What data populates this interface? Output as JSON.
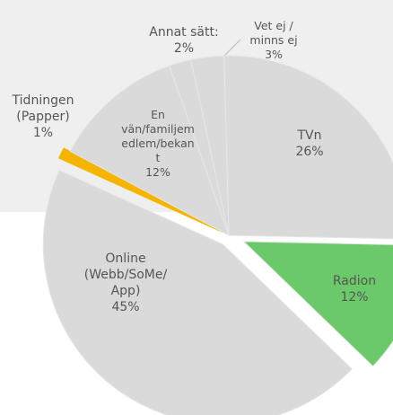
{
  "chart_data": {
    "type": "pie",
    "categories": [
      "TVn",
      "Radion",
      "Online (Webb/SoMe/App)",
      "Tidningen (Papper)",
      "En vän/familjemedlem/bekant",
      "Annat sätt:",
      "Vet ej / minns ej"
    ],
    "values": [
      26,
      12,
      45,
      1,
      12,
      2,
      3
    ],
    "value_labels": [
      "26%",
      "12%",
      "45%",
      "1%",
      "12%",
      "2%",
      "3%"
    ],
    "colors": [
      "#dadada",
      "#6cc96a",
      "#dadada",
      "#f4b400",
      "#dadada",
      "#dadada",
      "#dadada"
    ]
  }
}
